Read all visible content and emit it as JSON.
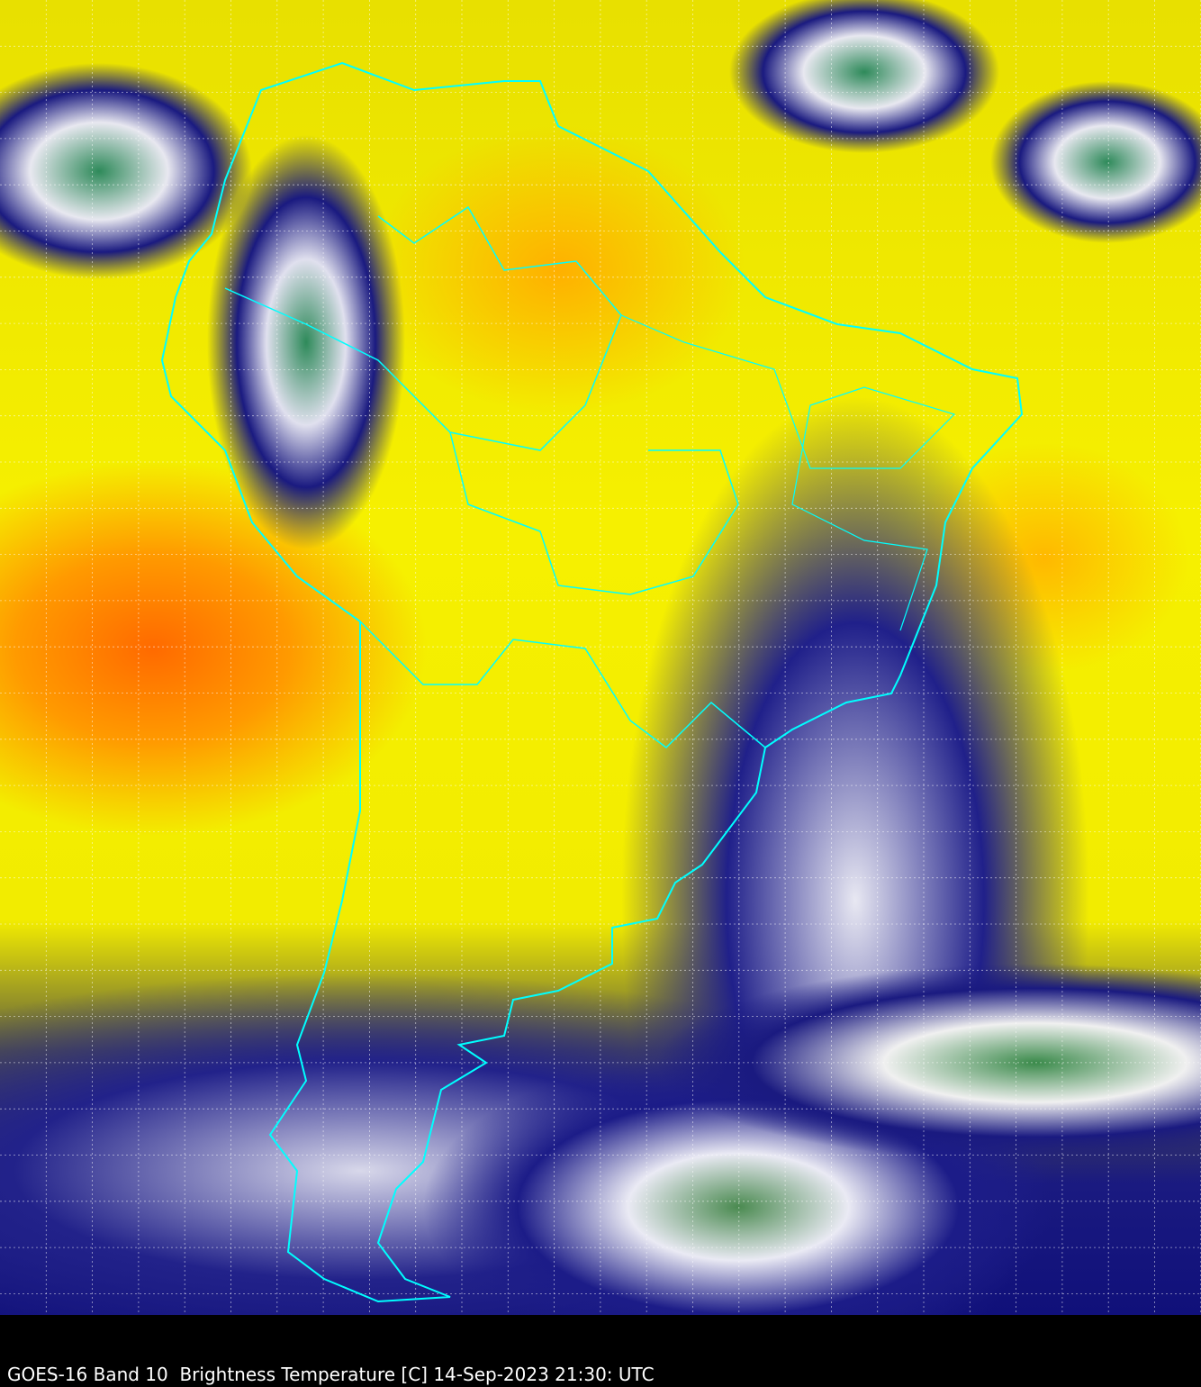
{
  "caption": "GOES-16 Band 10  Brightness Temperature [C] 14-Sep-2023 21:30: UTC",
  "colors": {
    "border": "#00ffff",
    "grid": "#ffffff",
    "background": "#000000"
  },
  "map": {
    "region": "South America",
    "overlays": [
      "country-borders",
      "state-borders",
      "lat-lon-grid"
    ]
  }
}
